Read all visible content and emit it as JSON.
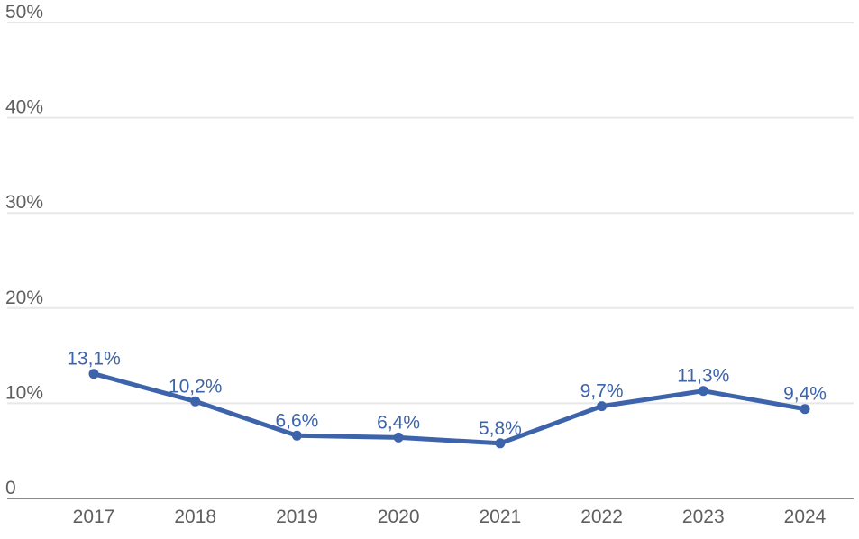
{
  "page": {
    "background": "#ffffff"
  },
  "chart_data": {
    "type": "line",
    "title": "",
    "xlabel": "",
    "ylabel": "",
    "x": [
      "2017",
      "2018",
      "2019",
      "2020",
      "2021",
      "2022",
      "2023",
      "2024"
    ],
    "values": [
      13.1,
      10.2,
      6.6,
      6.4,
      5.8,
      9.7,
      11.3,
      9.4
    ],
    "point_labels": [
      "13,1%",
      "10,2%",
      "6,6%",
      "6,4%",
      "5,8%",
      "9,7%",
      "11,3%",
      "9,4%"
    ],
    "ylim": [
      0,
      50
    ],
    "yticks": [
      {
        "value": 0,
        "label": "0"
      },
      {
        "value": 10,
        "label": "10%"
      },
      {
        "value": 20,
        "label": "20%"
      },
      {
        "value": 30,
        "label": "30%"
      },
      {
        "value": 40,
        "label": "40%"
      },
      {
        "value": 50,
        "label": "50%"
      }
    ],
    "grid": true,
    "legend": "none",
    "colors": {
      "line": "#3d64ab",
      "marker": "#3d64ab",
      "data_label": "#3d64ab",
      "gridline": "#e8e8e8",
      "axis_line": "#8a8a8a",
      "tick_text": "#5f5f5f"
    }
  }
}
